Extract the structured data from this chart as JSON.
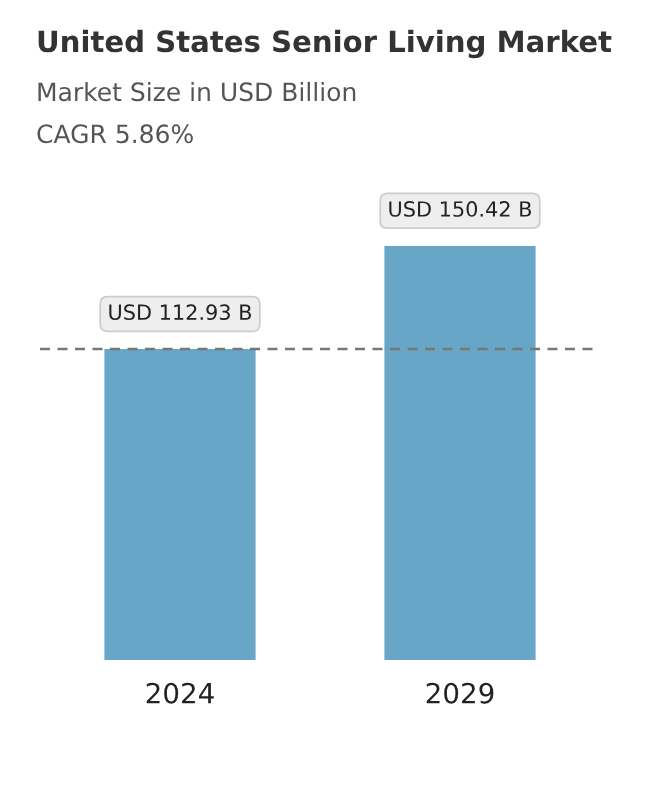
{
  "chart_data": {
    "type": "bar",
    "title": "United States Senior Living Market",
    "subtitle": "Market Size in USD Billion",
    "annotations": [
      "CAGR 5.86%"
    ],
    "categories": [
      "2024",
      "2029"
    ],
    "values": [
      112.93,
      150.42
    ],
    "value_labels": [
      "USD 112.93 B",
      "USD 150.42 B"
    ],
    "color": "#67a6c6",
    "ref_lines": [
      {
        "axis": "y",
        "value": 112.93,
        "label": null,
        "color": "#777777",
        "line_style": "dashed"
      }
    ],
    "grid": false,
    "legend": false
  }
}
